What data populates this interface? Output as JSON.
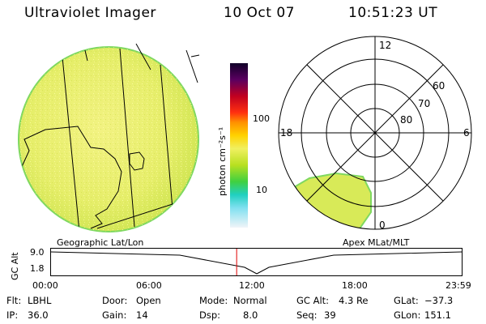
{
  "header": {
    "title": "Ultraviolet Imager",
    "date": "10 Oct 07",
    "time": "10:51:23 UT"
  },
  "colorbar": {
    "unit_label": "photon cm⁻²s⁻¹",
    "ticks": [
      "100",
      "10"
    ]
  },
  "polar_plot": {
    "mlt_labels": [
      "12",
      "18",
      "6",
      "0"
    ],
    "lat_labels": [
      "60",
      "70",
      "80"
    ]
  },
  "map_labels": {
    "left": "Geographic Lat/Lon",
    "right": "Apex MLat/MLT"
  },
  "altitude_plot": {
    "axis_title": "GC Alt",
    "y_ticks": [
      "9.0",
      "1.8"
    ],
    "x_ticks": [
      "00:00",
      "06:00",
      "12:00",
      "18:00",
      "23:59"
    ],
    "current_time_fraction": 0.452,
    "marker_color": "#e00000"
  },
  "status": {
    "flt_label": "Flt:",
    "flt_value": "LBHL",
    "ip_label": "IP:",
    "ip_value": "36.0",
    "door_label": "Door:",
    "door_value": "Open",
    "gain_label": "Gain:",
    "gain_value": "14",
    "mode_label": "Mode:",
    "mode_value": "Normal",
    "dsp_label": "Dsp:",
    "dsp_value": "8.0",
    "gcalt_label": "GC Alt:",
    "gcalt_value": "4.3 Re",
    "seq_label": "Seq:",
    "seq_value": "39",
    "glat_label": "GLat:",
    "glat_value": "−37.3",
    "glon_label": "GLon:",
    "glon_value": "151.1"
  }
}
